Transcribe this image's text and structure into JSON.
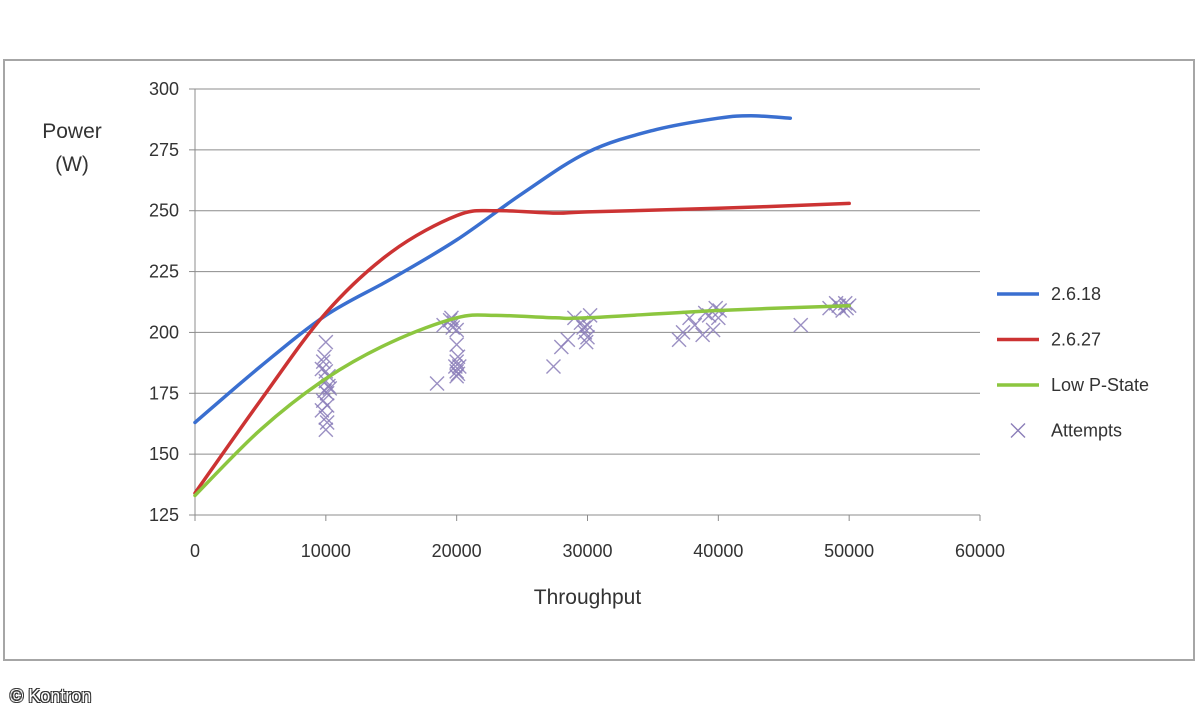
{
  "chart_data": {
    "type": "line",
    "title": "",
    "xlabel": "Throughput",
    "ylabel_lines": [
      "Power",
      "(W)"
    ],
    "xlim": [
      0,
      60000
    ],
    "ylim": [
      125,
      300
    ],
    "xticks": [
      0,
      10000,
      20000,
      30000,
      40000,
      50000,
      60000
    ],
    "yticks": [
      125,
      150,
      175,
      200,
      225,
      250,
      275,
      300
    ],
    "grid": "horizontal",
    "legend_position": "right",
    "series": [
      {
        "name": "2.6.18",
        "kind": "line",
        "color": "#3a6fd0",
        "x": [
          0,
          5000,
          10000,
          15000,
          20000,
          25000,
          30000,
          35000,
          40000,
          42500,
          45500
        ],
        "y": [
          163,
          186,
          207,
          222,
          238,
          257,
          274,
          283,
          288,
          289,
          288
        ]
      },
      {
        "name": "2.6.27",
        "kind": "line",
        "color": "#cc3333",
        "x": [
          0,
          5000,
          10000,
          15000,
          20000,
          23000,
          27500,
          30000,
          40000,
          50000
        ],
        "y": [
          134,
          172,
          208,
          233,
          248,
          250,
          249,
          249.5,
          251,
          253
        ]
      },
      {
        "name": "Low P-State",
        "kind": "line",
        "color": "#8cc63f",
        "x": [
          0,
          5000,
          10000,
          15000,
          20000,
          23000,
          27500,
          30000,
          40000,
          50000
        ],
        "y": [
          133,
          160,
          181,
          196,
          206,
          207,
          206,
          206,
          209,
          211
        ]
      },
      {
        "name": "Attempts",
        "kind": "scatter",
        "color": "#8a7db8",
        "marker": "x",
        "x": [
          9700,
          9800,
          9900,
          10000,
          10000,
          10100,
          10100,
          10200,
          9800,
          10000,
          10000,
          10100,
          9900,
          10200,
          9700,
          10000,
          10300,
          18500,
          19000,
          19500,
          19700,
          20000,
          20000,
          20000,
          20100,
          19900,
          20000,
          20100,
          20200,
          19800,
          20000,
          19600,
          27400,
          28000,
          28500,
          29000,
          29500,
          29800,
          30000,
          30000,
          29700,
          30200,
          29900,
          37000,
          37300,
          37800,
          38200,
          39000,
          39300,
          39800,
          40000,
          39600,
          40100,
          38800,
          46300,
          48500,
          49000,
          49200,
          49500,
          49800,
          50000,
          49700
        ],
        "y": [
          168,
          172,
          176,
          180,
          184,
          170,
          175,
          178,
          188,
          165,
          160,
          163,
          190,
          182,
          185,
          196,
          177,
          179,
          203,
          205,
          202,
          188,
          184,
          195,
          183,
          186,
          201,
          190,
          186,
          204,
          182,
          206,
          186,
          194,
          197,
          206,
          204,
          200,
          198,
          203,
          202,
          207,
          196,
          197,
          200,
          206,
          203,
          208,
          207,
          210,
          206,
          201,
          209,
          199,
          203,
          210,
          212,
          211,
          209,
          210,
          211,
          212
        ]
      }
    ]
  },
  "footer": {
    "copyright": "© Kontron"
  }
}
